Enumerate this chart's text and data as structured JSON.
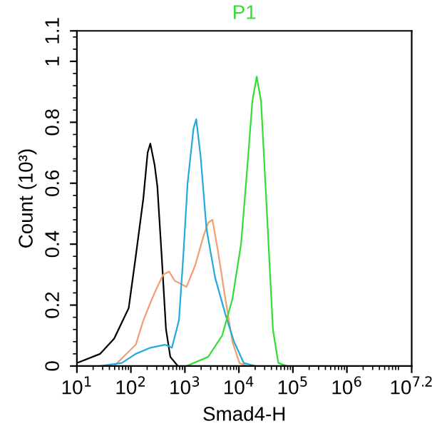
{
  "chart_data": {
    "type": "line",
    "title": "P1",
    "xlabel": "Smad4-H",
    "ylabel": "Count (10³)",
    "log": "x",
    "marker": "none",
    "line_style": "solid",
    "xlim": [
      10,
      15848932
    ],
    "ylim": [
      0,
      1.1
    ],
    "xticks": [
      {
        "value": 10,
        "label": "10$^{1}$"
      },
      {
        "value": 100,
        "label": "10$^{2}$"
      },
      {
        "value": 1000,
        "label": "10$^{3}$"
      },
      {
        "value": 10000,
        "label": "10$^{4}$"
      },
      {
        "value": 100000,
        "label": "10$^{5}$"
      },
      {
        "value": 1000000,
        "label": "10$^{6}$"
      },
      {
        "value": 15848932,
        "label": "10$^{7.2}$"
      }
    ],
    "yticks": [
      0,
      0.2,
      0.4,
      0.6,
      0.8,
      1,
      1.1
    ],
    "series": [
      {
        "color": "#000000",
        "x": [
          10,
          27,
          49,
          91,
          123,
          170,
          204,
          229,
          275,
          309,
          372,
          447,
          537,
          741
        ],
        "values": [
          0.01,
          0.04,
          0.09,
          0.19,
          0.36,
          0.55,
          0.7,
          0.73,
          0.66,
          0.59,
          0.36,
          0.12,
          0.03,
          0
        ]
      },
      {
        "color": "#f0a070",
        "x": [
          49,
          123,
          170,
          245,
          309,
          398,
          513,
          646,
          1072,
          1549,
          2239,
          2692,
          3236,
          4074,
          5623,
          7586,
          10230,
          14130
        ],
        "values": [
          0,
          0.07,
          0.15,
          0.22,
          0.26,
          0.3,
          0.31,
          0.28,
          0.26,
          0.33,
          0.43,
          0.47,
          0.48,
          0.38,
          0.22,
          0.08,
          0.01,
          0
        ]
      },
      {
        "color": "#22aadd",
        "x": [
          27,
          68,
          123,
          229,
          427,
          575,
          776,
          933,
          1122,
          1445,
          1622,
          1950,
          2512,
          3631,
          5623,
          8128,
          12300,
          20420
        ],
        "values": [
          0,
          0.01,
          0.04,
          0.06,
          0.07,
          0.06,
          0.15,
          0.36,
          0.6,
          0.78,
          0.81,
          0.69,
          0.45,
          0.29,
          0.17,
          0.08,
          0.01,
          0
        ]
      },
      {
        "color": "#33dd33",
        "x": [
          1072,
          2692,
          4898,
          7586,
          10960,
          14130,
          17780,
          21380,
          25700,
          33110,
          42660,
          53700,
          77620
        ],
        "values": [
          0,
          0.03,
          0.1,
          0.22,
          0.4,
          0.64,
          0.87,
          0.95,
          0.87,
          0.5,
          0.12,
          0.01,
          0
        ]
      }
    ]
  }
}
